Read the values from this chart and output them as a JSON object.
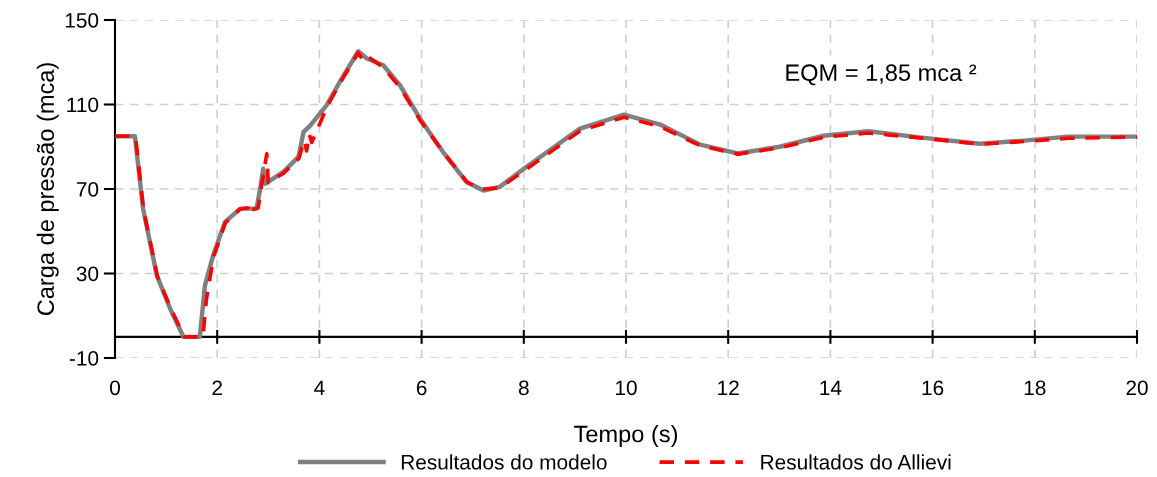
{
  "chart_data": {
    "type": "line",
    "xlabel": "Tempo (s)",
    "ylabel": "Carga de pressão (mca)",
    "xlim": [
      0,
      20
    ],
    "ylim": [
      -10,
      150
    ],
    "xticks": [
      0,
      2,
      4,
      6,
      8,
      10,
      12,
      14,
      16,
      18,
      20
    ],
    "yticks": [
      -10,
      30,
      70,
      110,
      150
    ],
    "grid": true,
    "legend": "bottom",
    "marker": "none",
    "annotations": [
      "EQM = 1,85 mca ²"
    ],
    "series": [
      {
        "name": "Resultados do modelo",
        "color": "#808080",
        "line_style": "solid",
        "x": [
          0,
          0.39,
          0.55,
          0.82,
          1.08,
          1.34,
          1.66,
          1.76,
          1.92,
          2.15,
          2.45,
          2.77,
          2.84,
          2.9,
          2.94,
          3.29,
          3.59,
          3.69,
          3.82,
          4.14,
          4.4,
          4.76,
          4.93,
          5.25,
          5.58,
          5.97,
          6.42,
          6.88,
          7.21,
          7.53,
          8.0,
          9.1,
          9.96,
          10.67,
          11.45,
          12.19,
          13.01,
          13.87,
          14.74,
          15.83,
          16.93,
          17.79,
          18.65,
          19.75,
          20
        ],
        "values": [
          95,
          95,
          60.6,
          29,
          13.3,
          0,
          0,
          24.3,
          38.5,
          54.3,
          60.7,
          60.7,
          70,
          79.6,
          72.5,
          78,
          85.2,
          97,
          100,
          109.6,
          120.7,
          135.2,
          131.8,
          128.6,
          119,
          103.3,
          87.5,
          73.3,
          69.3,
          71,
          79.6,
          98.6,
          105.2,
          100.5,
          91,
          86.8,
          90,
          95.2,
          97.3,
          94.2,
          91.4,
          92.9,
          94.8,
          94.8,
          94.8
        ]
      },
      {
        "name": "Resultados do Allievi",
        "color": "#ff0000",
        "line_style": "dashed",
        "x": [
          0,
          0.4,
          0.56,
          0.83,
          1.1,
          1.36,
          1.72,
          1.79,
          1.93,
          2.16,
          2.45,
          2.6,
          2.63,
          2.66,
          2.8,
          2.87,
          2.97,
          3.0,
          3.3,
          3.6,
          3.7,
          3.75,
          3.8,
          3.85,
          4.14,
          4.4,
          4.76,
          4.85,
          4.93,
          5.25,
          5.58,
          5.97,
          6.45,
          6.9,
          7.2,
          7.53,
          8.0,
          9.1,
          9.96,
          10.67,
          11.45,
          12.19,
          13.01,
          13.87,
          14.74,
          15.83,
          16.93,
          17.79,
          18.65,
          19.75,
          20
        ],
        "values": [
          95,
          95,
          60,
          28.5,
          13,
          0,
          0,
          18,
          38,
          54,
          60.5,
          61,
          63,
          60,
          61,
          72,
          86.7,
          73,
          77.5,
          84.5,
          93,
          88,
          96,
          92,
          108.5,
          120,
          134.5,
          131,
          133,
          127.5,
          118,
          102.5,
          86.5,
          73,
          70,
          70.5,
          78.5,
          97.5,
          104,
          99.5,
          90.5,
          86.5,
          89.5,
          94.5,
          96.5,
          94,
          91.2,
          92.5,
          94,
          94.5,
          94.5
        ]
      }
    ]
  }
}
